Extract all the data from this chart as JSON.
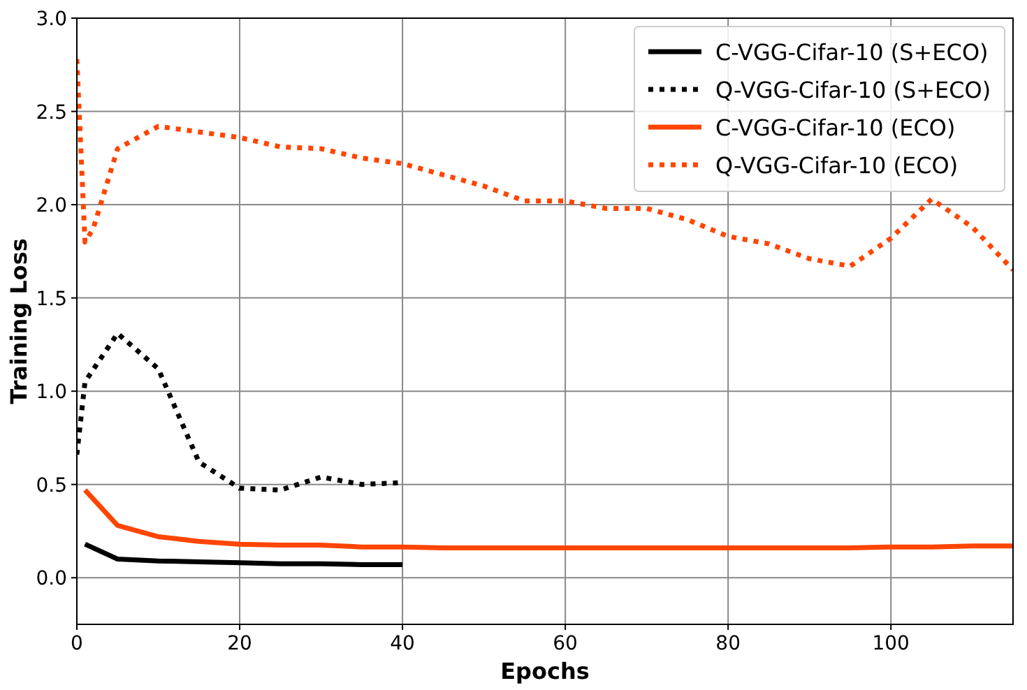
{
  "chart_data": {
    "type": "line",
    "xlabel": "Epochs",
    "ylabel": "Training Loss",
    "xlim": [
      0,
      115
    ],
    "ylim": [
      -0.25,
      3.0
    ],
    "xticks": [
      0,
      20,
      40,
      60,
      80,
      100
    ],
    "yticks": [
      {
        "value": 0,
        "label": "0.0"
      },
      0.5,
      {
        "value": 1,
        "label": "1.0"
      },
      1.5,
      {
        "value": 2,
        "label": "2.0"
      },
      2.5,
      {
        "value": 3,
        "label": "3.0"
      }
    ],
    "grid": true,
    "legend": "top right",
    "series": [
      {
        "name": "C-VGG-Cifar-10 (S+ECO)",
        "color": "#000000",
        "line_style": "solid",
        "x": [
          1,
          5,
          10,
          15,
          20,
          25,
          30,
          35,
          40
        ],
        "values": [
          0.18,
          0.1,
          0.09,
          0.085,
          0.08,
          0.075,
          0.075,
          0.07,
          0.07
        ]
      },
      {
        "name": "Q-VGG-Cifar-10 (S+ECO)",
        "color": "#000000",
        "line_style": "dotted",
        "x": [
          0,
          1,
          5,
          10,
          15,
          20,
          25,
          30,
          35,
          40
        ],
        "values": [
          0.66,
          1.05,
          1.31,
          1.12,
          0.62,
          0.48,
          0.47,
          0.54,
          0.5,
          0.51
        ]
      },
      {
        "name": "C-VGG-Cifar-10 (ECO)",
        "color": "#ff4500",
        "line_style": "solid",
        "x": [
          1,
          5,
          10,
          15,
          20,
          25,
          30,
          35,
          40,
          45,
          50,
          55,
          60,
          65,
          70,
          75,
          80,
          85,
          90,
          95,
          100,
          105,
          110,
          115
        ],
        "values": [
          0.47,
          0.28,
          0.22,
          0.195,
          0.18,
          0.175,
          0.175,
          0.165,
          0.165,
          0.16,
          0.16,
          0.16,
          0.16,
          0.16,
          0.16,
          0.16,
          0.16,
          0.16,
          0.16,
          0.16,
          0.165,
          0.165,
          0.17,
          0.17
        ]
      },
      {
        "name": "Q-VGG-Cifar-10 (ECO)",
        "color": "#ff4500",
        "line_style": "dotted",
        "x": [
          0,
          1,
          2,
          5,
          10,
          15,
          20,
          25,
          30,
          35,
          40,
          45,
          50,
          55,
          60,
          65,
          70,
          75,
          80,
          85,
          90,
          95,
          100,
          105,
          110,
          115
        ],
        "values": [
          2.78,
          1.8,
          1.87,
          2.3,
          2.42,
          2.39,
          2.36,
          2.31,
          2.3,
          2.25,
          2.22,
          2.16,
          2.1,
          2.02,
          2.02,
          1.98,
          1.98,
          1.92,
          1.83,
          1.79,
          1.71,
          1.67,
          1.82,
          2.03,
          1.88,
          1.65
        ]
      }
    ]
  }
}
